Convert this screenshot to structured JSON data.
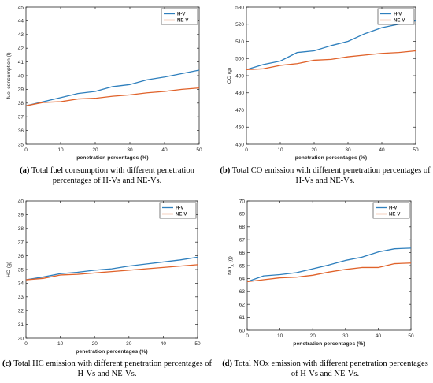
{
  "colors": {
    "hv": "#2e7fbd",
    "nev": "#e0622a",
    "axis": "#262626",
    "grid": "#000000"
  },
  "chart_data": [
    {
      "id": "a",
      "type": "line",
      "xlabel": "penetration percentages (%)",
      "ylabel": "fuel consumption (l)",
      "xlim": [
        0,
        50
      ],
      "ylim": [
        35,
        45
      ],
      "xticks": [
        0,
        10,
        20,
        30,
        40,
        50
      ],
      "yticks": [
        35,
        36,
        37,
        38,
        39,
        40,
        41,
        42,
        43,
        44,
        45
      ],
      "legend_position": "top-right",
      "x": [
        0,
        5,
        10,
        15,
        20,
        25,
        30,
        35,
        40,
        45,
        50
      ],
      "series": [
        {
          "name": "H-V",
          "color_key": "hv",
          "values": [
            37.8,
            38.1,
            38.4,
            38.7,
            38.85,
            39.2,
            39.35,
            39.7,
            39.9,
            40.15,
            40.4
          ]
        },
        {
          "name": "NE-V",
          "color_key": "nev",
          "values": [
            37.8,
            38.05,
            38.1,
            38.3,
            38.35,
            38.5,
            38.6,
            38.75,
            38.85,
            39.0,
            39.1
          ]
        }
      ]
    },
    {
      "id": "b",
      "type": "line",
      "xlabel": "penetration percentages (%)",
      "ylabel": "CO (g)",
      "xlim": [
        0,
        50
      ],
      "ylim": [
        450,
        530
      ],
      "xticks": [
        0,
        10,
        20,
        30,
        40,
        50
      ],
      "yticks": [
        450,
        460,
        470,
        480,
        490,
        500,
        510,
        520,
        530
      ],
      "legend_position": "top-right",
      "x": [
        0,
        5,
        10,
        15,
        20,
        25,
        30,
        35,
        40,
        45,
        50
      ],
      "series": [
        {
          "name": "H-V",
          "color_key": "hv",
          "values": [
            493.5,
            496.5,
            498.5,
            503.5,
            504.5,
            507.5,
            510.0,
            514.5,
            518.0,
            520.0,
            522.0
          ]
        },
        {
          "name": "NE-V",
          "color_key": "nev",
          "values": [
            493.5,
            494.0,
            496.0,
            497.0,
            499.0,
            499.5,
            501.0,
            502.0,
            503.0,
            503.5,
            504.5
          ]
        }
      ]
    },
    {
      "id": "c",
      "type": "line",
      "xlabel": "penetration percentages (%)",
      "ylabel": "HC (g)",
      "xlim": [
        0,
        50
      ],
      "ylim": [
        30,
        40
      ],
      "xticks": [
        0,
        10,
        20,
        30,
        40,
        50
      ],
      "yticks": [
        30,
        31,
        32,
        33,
        34,
        35,
        36,
        37,
        38,
        39,
        40
      ],
      "legend_position": "top-right",
      "x": [
        0,
        5,
        10,
        15,
        20,
        25,
        30,
        35,
        40,
        45,
        50
      ],
      "series": [
        {
          "name": "H-V",
          "color_key": "hv",
          "values": [
            34.25,
            34.45,
            34.7,
            34.8,
            34.95,
            35.05,
            35.25,
            35.4,
            35.55,
            35.7,
            35.9
          ]
        },
        {
          "name": "NE-V",
          "color_key": "nev",
          "values": [
            34.25,
            34.35,
            34.6,
            34.65,
            34.75,
            34.85,
            34.95,
            35.05,
            35.15,
            35.25,
            35.35
          ]
        }
      ]
    },
    {
      "id": "d",
      "type": "line",
      "xlabel": "penetration percentages (%)",
      "ylabel": "NOX (g)",
      "ylabel_main": "NO",
      "ylabel_sub": "X",
      "ylabel_tail": " (g)",
      "xlim": [
        0,
        50
      ],
      "ylim": [
        60,
        70
      ],
      "xticks": [
        0,
        10,
        20,
        30,
        40,
        50
      ],
      "yticks": [
        60,
        61,
        62,
        63,
        64,
        65,
        66,
        67,
        68,
        69,
        70
      ],
      "legend_position": "top-right",
      "x": [
        0,
        5,
        10,
        15,
        20,
        25,
        30,
        35,
        40,
        45,
        50
      ],
      "series": [
        {
          "name": "H-V",
          "color_key": "hv",
          "values": [
            63.75,
            64.2,
            64.3,
            64.45,
            64.75,
            65.05,
            65.4,
            65.65,
            66.05,
            66.3,
            66.35
          ]
        },
        {
          "name": "NE-V",
          "color_key": "nev",
          "values": [
            63.75,
            63.9,
            64.05,
            64.1,
            64.25,
            64.5,
            64.7,
            64.85,
            64.85,
            65.15,
            65.2
          ]
        }
      ]
    }
  ],
  "captions": [
    {
      "id": "a",
      "tag": "(a)",
      "text": " Total fuel consumption with different penetration percentages of H-Vs and NE-Vs."
    },
    {
      "id": "b",
      "tag": "(b)",
      "text": " Total CO emission with different penetration percentages of H-Vs and NE-Vs."
    },
    {
      "id": "c",
      "tag": "(c)",
      "text": " Total HC emission with different penetration percentages of H-Vs and NE-Vs."
    },
    {
      "id": "d",
      "tag": "(d)",
      "text": " Total NOx emission with different penetration percentages of H-Vs and NE-Vs."
    }
  ]
}
